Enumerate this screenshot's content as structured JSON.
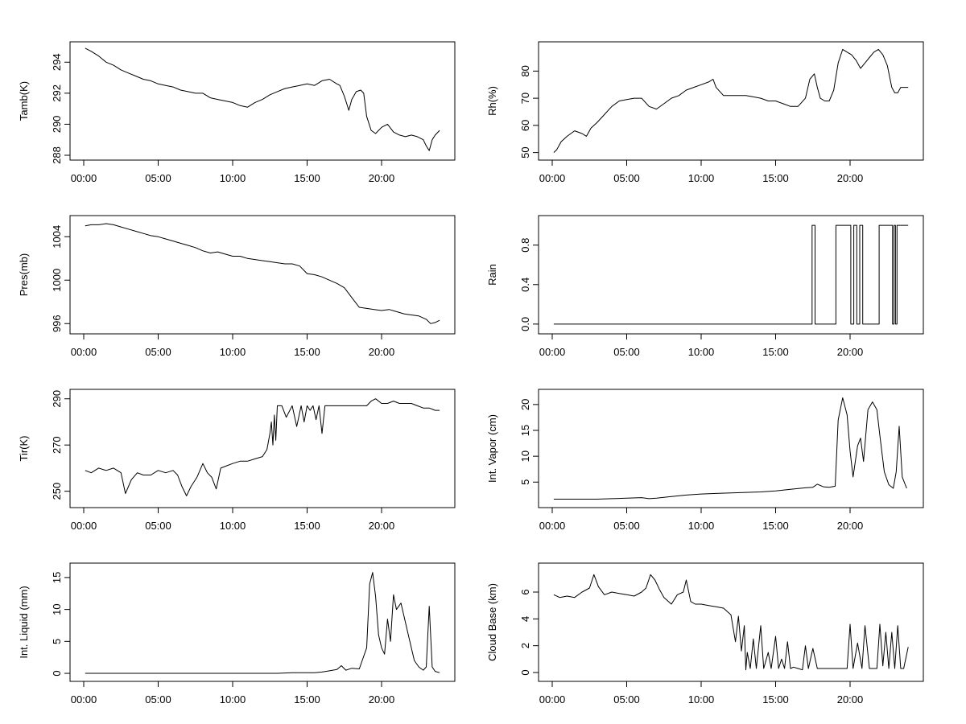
{
  "chart_data": [
    {
      "type": "line",
      "ylabel": "Tamb(K)",
      "xlim": [
        0,
        24
      ],
      "ylim": [
        288,
        295
      ],
      "xticks": [
        0,
        5,
        10,
        15,
        20
      ],
      "xtick_labels": [
        "00:00",
        "05:00",
        "10:00",
        "15:00",
        "20:00"
      ],
      "yticks": [
        288,
        290,
        292,
        294
      ],
      "ytick_labels": [
        "288",
        "290",
        "292",
        "294"
      ],
      "grid": false,
      "x": [
        0.1,
        0.5,
        1,
        1.5,
        2,
        2.5,
        3,
        3.5,
        4,
        4.5,
        5,
        5.5,
        6,
        6.5,
        7,
        7.5,
        8,
        8.5,
        9,
        9.5,
        10,
        10.5,
        11,
        11.5,
        12,
        12.5,
        13,
        13.5,
        14,
        14.5,
        15,
        15.5,
        16,
        16.5,
        17,
        17.2,
        17.5,
        17.8,
        18,
        18.3,
        18.6,
        18.8,
        19,
        19.3,
        19.6,
        20,
        20.4,
        20.8,
        21.2,
        21.6,
        22,
        22.4,
        22.8,
        23,
        23.2,
        23.4,
        23.6,
        23.9
      ],
      "y": [
        294.9,
        294.7,
        294.4,
        294.0,
        293.8,
        293.5,
        293.3,
        293.1,
        292.9,
        292.8,
        292.6,
        292.5,
        292.4,
        292.2,
        292.1,
        292.0,
        292.0,
        291.7,
        291.6,
        291.5,
        291.4,
        291.2,
        291.1,
        291.4,
        291.6,
        291.9,
        292.1,
        292.3,
        292.4,
        292.5,
        292.6,
        292.5,
        292.8,
        292.9,
        292.6,
        292.5,
        291.8,
        290.9,
        291.6,
        292.1,
        292.2,
        292.0,
        290.5,
        289.6,
        289.4,
        289.8,
        290.0,
        289.5,
        289.3,
        289.2,
        289.3,
        289.2,
        289.0,
        288.6,
        288.3,
        289.0,
        289.3,
        289.6
      ]
    },
    {
      "type": "line",
      "ylabel": "Rh(%)",
      "xlim": [
        0,
        24
      ],
      "ylim": [
        49,
        89
      ],
      "xticks": [
        0,
        5,
        10,
        15,
        20
      ],
      "xtick_labels": [
        "00:00",
        "05:00",
        "10:00",
        "15:00",
        "20:00"
      ],
      "yticks": [
        50,
        60,
        70,
        80
      ],
      "ytick_labels": [
        "50",
        "60",
        "70",
        "80"
      ],
      "grid": false,
      "x": [
        0.1,
        0.3,
        0.6,
        1,
        1.5,
        2,
        2.3,
        2.6,
        3,
        3.5,
        4,
        4.5,
        5,
        5.5,
        6,
        6.5,
        7,
        7.5,
        8,
        8.5,
        9,
        9.5,
        10,
        10.5,
        10.8,
        11,
        11.5,
        12,
        12.5,
        13,
        13.5,
        14,
        14.5,
        15,
        15.5,
        16,
        16.5,
        17,
        17.3,
        17.6,
        17.8,
        18,
        18.3,
        18.6,
        18.9,
        19.2,
        19.5,
        19.8,
        20.1,
        20.4,
        20.7,
        21,
        21.3,
        21.6,
        21.9,
        22.2,
        22.5,
        22.8,
        23,
        23.2,
        23.4,
        23.6,
        23.9
      ],
      "y": [
        50,
        51,
        54,
        56,
        58,
        57,
        56,
        59,
        61,
        64,
        67,
        69,
        69.5,
        70,
        70,
        67,
        66,
        68,
        70,
        71,
        73,
        74,
        75,
        76,
        77,
        74,
        71,
        71,
        71,
        71,
        70.5,
        70,
        69,
        69,
        68,
        67,
        67,
        70,
        77,
        79,
        74,
        70,
        69,
        69,
        73,
        83,
        88,
        87,
        86,
        84,
        81,
        83,
        85,
        87,
        88,
        86,
        82,
        74,
        72,
        72,
        74,
        74,
        74
      ]
    },
    {
      "type": "line",
      "ylabel": "Pres(mb)",
      "xlim": [
        0,
        24
      ],
      "ylim": [
        995.5,
        1005.5
      ],
      "xticks": [
        0,
        5,
        10,
        15,
        20
      ],
      "xtick_labels": [
        "00:00",
        "05:00",
        "10:00",
        "15:00",
        "20:00"
      ],
      "yticks": [
        996,
        1000,
        1004
      ],
      "ytick_labels": [
        "996",
        "1000",
        "1004"
      ],
      "grid": false,
      "x": [
        0.1,
        0.5,
        1,
        1.5,
        2,
        2.5,
        3,
        3.5,
        4,
        4.5,
        5,
        5.5,
        6,
        6.5,
        7,
        7.5,
        8,
        8.5,
        9,
        9.5,
        10,
        10.5,
        11,
        11.5,
        12,
        12.5,
        13,
        13.5,
        14,
        14.5,
        15,
        15.5,
        16,
        16.5,
        17,
        17.5,
        18,
        18.5,
        19,
        19.5,
        20,
        20.5,
        21,
        21.5,
        22,
        22.5,
        23,
        23.3,
        23.6,
        23.9
      ],
      "y": [
        1005.0,
        1005.1,
        1005.1,
        1005.2,
        1005.1,
        1004.9,
        1004.7,
        1004.5,
        1004.3,
        1004.1,
        1004.0,
        1003.8,
        1003.6,
        1003.4,
        1003.2,
        1003.0,
        1002.7,
        1002.5,
        1002.6,
        1002.4,
        1002.2,
        1002.2,
        1002.0,
        1001.9,
        1001.8,
        1001.7,
        1001.6,
        1001.5,
        1001.5,
        1001.3,
        1000.6,
        1000.5,
        1000.3,
        1000.0,
        999.7,
        999.3,
        998.4,
        997.5,
        997.4,
        997.3,
        997.2,
        997.3,
        997.1,
        996.9,
        996.8,
        996.7,
        996.4,
        996.0,
        996.1,
        996.3
      ]
    },
    {
      "type": "line",
      "ylabel": "Rain",
      "xlim": [
        0,
        24
      ],
      "ylim": [
        -0.05,
        1.05
      ],
      "xticks": [
        0,
        5,
        10,
        15,
        20
      ],
      "xtick_labels": [
        "00:00",
        "05:00",
        "10:00",
        "15:00",
        "20:00"
      ],
      "yticks": [
        0.0,
        0.4,
        0.8
      ],
      "ytick_labels": [
        "0.0",
        "0.4",
        "0.8"
      ],
      "grid": false,
      "x": [
        0.1,
        17.45,
        17.45,
        17.65,
        17.65,
        19.05,
        19.05,
        20.05,
        20.05,
        20.25,
        20.25,
        20.45,
        20.45,
        20.65,
        20.65,
        20.85,
        20.85,
        21.95,
        21.95,
        22.85,
        22.85,
        22.95,
        22.95,
        23.05,
        23.05,
        23.15,
        23.15,
        23.9
      ],
      "y": [
        0,
        0,
        1,
        1,
        0,
        0,
        1,
        1,
        0,
        0,
        1,
        1,
        0,
        0,
        1,
        1,
        0,
        0,
        1,
        1,
        0,
        0,
        1,
        1,
        0,
        0,
        1,
        1
      ]
    },
    {
      "type": "line",
      "ylabel": "Tir(K)",
      "xlim": [
        0,
        24
      ],
      "ylim": [
        245,
        292
      ],
      "xticks": [
        0,
        5,
        10,
        15,
        20
      ],
      "xtick_labels": [
        "00:00",
        "05:00",
        "10:00",
        "15:00",
        "20:00"
      ],
      "yticks": [
        250,
        270,
        290
      ],
      "ytick_labels": [
        "250",
        "270",
        "290"
      ],
      "grid": false,
      "x": [
        0.1,
        0.5,
        1,
        1.5,
        2,
        2.5,
        2.8,
        3.2,
        3.6,
        4,
        4.5,
        5,
        5.5,
        6,
        6.3,
        6.6,
        6.9,
        7.2,
        7.6,
        8,
        8.3,
        8.6,
        8.9,
        9.2,
        9.6,
        10,
        10.5,
        11,
        11.5,
        12,
        12.3,
        12.5,
        12.6,
        12.7,
        12.8,
        12.9,
        13,
        13.1,
        13.3,
        13.6,
        14,
        14.3,
        14.6,
        14.8,
        15,
        15.2,
        15.4,
        15.6,
        15.8,
        16,
        16.2,
        16.5,
        17,
        17.5,
        18,
        18.5,
        19,
        19.3,
        19.6,
        20,
        20.4,
        20.8,
        21.2,
        21.6,
        22,
        22.4,
        22.8,
        23.2,
        23.6,
        23.9
      ],
      "y": [
        259,
        258,
        260,
        259,
        260,
        258,
        249,
        255,
        258,
        257,
        257,
        259,
        258,
        259,
        257,
        252,
        248,
        252,
        256,
        262,
        258,
        256,
        251,
        260,
        261,
        262,
        263,
        263,
        264,
        265,
        268,
        275,
        280,
        270,
        283,
        272,
        287,
        287,
        287,
        282,
        287,
        278,
        287,
        280,
        287,
        285,
        287,
        281,
        287,
        275,
        287,
        287,
        287,
        287,
        287,
        287,
        287,
        289,
        290,
        288,
        288,
        289,
        288,
        288,
        288,
        287,
        286,
        286,
        285,
        285
      ]
    },
    {
      "type": "line",
      "ylabel": "Int. Vapor (cm)",
      "xlim": [
        0,
        24
      ],
      "ylim": [
        1,
        22
      ],
      "xticks": [
        0,
        5,
        10,
        15,
        20
      ],
      "xtick_labels": [
        "00:00",
        "05:00",
        "10:00",
        "15:00",
        "20:00"
      ],
      "yticks": [
        5,
        10,
        15,
        20
      ],
      "ytick_labels": [
        "5",
        "10",
        "15",
        "20"
      ],
      "grid": false,
      "x": [
        0.1,
        1,
        2,
        3,
        4,
        5,
        6,
        6.5,
        7,
        8,
        9,
        10,
        11,
        12,
        13,
        14,
        15,
        16,
        17,
        17.5,
        17.8,
        18.2,
        18.6,
        19,
        19.2,
        19.5,
        19.8,
        20,
        20.2,
        20.5,
        20.7,
        20.9,
        21.2,
        21.5,
        21.8,
        22,
        22.3,
        22.6,
        22.9,
        23.1,
        23.3,
        23.5,
        23.8
      ],
      "y": [
        1.7,
        1.7,
        1.7,
        1.7,
        1.8,
        1.9,
        2.0,
        1.8,
        1.9,
        2.2,
        2.5,
        2.7,
        2.8,
        2.9,
        3.0,
        3.1,
        3.3,
        3.6,
        3.9,
        4.0,
        4.6,
        4.1,
        4.0,
        4.2,
        17,
        21.3,
        18,
        11,
        6,
        12,
        13.5,
        9,
        19,
        20.5,
        19,
        14,
        7,
        4.5,
        3.8,
        7,
        15.8,
        6,
        3.8
      ]
    },
    {
      "type": "line",
      "ylabel": "Int. Liquid (mm)",
      "xlim": [
        0,
        24
      ],
      "ylim": [
        -0.5,
        16.5
      ],
      "xticks": [
        0,
        5,
        10,
        15,
        20
      ],
      "xtick_labels": [
        "00:00",
        "05:00",
        "10:00",
        "15:00",
        "20:00"
      ],
      "yticks": [
        0,
        5,
        10,
        15
      ],
      "ytick_labels": [
        "0",
        "5",
        "10",
        "15"
      ],
      "grid": false,
      "x": [
        0.1,
        5,
        10,
        13,
        14,
        15,
        15.5,
        16,
        16.5,
        17,
        17.3,
        17.6,
        18,
        18.5,
        19,
        19.2,
        19.4,
        19.6,
        19.8,
        20,
        20.2,
        20.4,
        20.6,
        20.8,
        21,
        21.3,
        21.6,
        21.9,
        22.2,
        22.5,
        22.8,
        23,
        23.2,
        23.4,
        23.6,
        23.9
      ],
      "y": [
        0,
        0,
        0,
        0,
        0.1,
        0.1,
        0.1,
        0.2,
        0.4,
        0.6,
        1.2,
        0.5,
        0.8,
        0.7,
        4,
        14,
        15.8,
        12,
        6,
        4,
        3,
        8.5,
        5,
        12.3,
        10,
        11,
        8,
        5,
        2,
        1,
        0.5,
        1,
        10.5,
        1,
        0.3,
        0.1
      ]
    },
    {
      "type": "line",
      "ylabel": "Cloud Base (km)",
      "xlim": [
        0,
        24
      ],
      "ylim": [
        -0.3,
        7.8
      ],
      "xticks": [
        0,
        5,
        10,
        15,
        20
      ],
      "xtick_labels": [
        "00:00",
        "05:00",
        "10:00",
        "15:00",
        "20:00"
      ],
      "yticks": [
        0,
        2,
        4,
        6
      ],
      "ytick_labels": [
        "0",
        "2",
        "4",
        "6"
      ],
      "grid": false,
      "x": [
        0.1,
        0.5,
        1,
        1.5,
        2,
        2.5,
        2.8,
        3.1,
        3.5,
        4,
        4.5,
        5,
        5.5,
        6,
        6.3,
        6.6,
        6.9,
        7.2,
        7.5,
        8,
        8.4,
        8.8,
        9,
        9.3,
        9.6,
        10,
        10.5,
        11,
        11.5,
        12,
        12.3,
        12.5,
        12.7,
        12.9,
        13,
        13.1,
        13.3,
        13.5,
        13.7,
        14,
        14.2,
        14.5,
        14.7,
        15,
        15.2,
        15.4,
        15.6,
        15.8,
        16,
        16.2,
        16.5,
        16.8,
        17,
        17.2,
        17.5,
        17.8,
        18,
        18.5,
        19,
        19.5,
        19.8,
        20,
        20.2,
        20.5,
        20.8,
        21,
        21.3,
        21.6,
        21.8,
        22,
        22.2,
        22.4,
        22.6,
        22.8,
        23,
        23.2,
        23.4,
        23.6,
        23.9
      ],
      "y": [
        5.8,
        5.6,
        5.7,
        5.6,
        6.0,
        6.3,
        7.3,
        6.4,
        5.8,
        6.0,
        5.9,
        5.8,
        5.7,
        6.0,
        6.3,
        7.3,
        6.9,
        6.2,
        5.6,
        5.1,
        5.8,
        6.0,
        6.9,
        5.3,
        5.1,
        5.1,
        5.0,
        4.9,
        4.8,
        4.3,
        2.3,
        4.2,
        1.6,
        3.5,
        0.2,
        1.5,
        0.3,
        2.5,
        0.3,
        3.5,
        0.3,
        1.5,
        0.3,
        2.7,
        0.3,
        1.0,
        0.3,
        2.3,
        0.3,
        0.4,
        0.3,
        0.2,
        2.0,
        0.3,
        1.8,
        0.3,
        0.3,
        0.3,
        0.3,
        0.3,
        0.3,
        3.6,
        0.3,
        2.2,
        0.3,
        3.5,
        0.3,
        0.3,
        0.3,
        3.6,
        0.5,
        3.0,
        0.3,
        3.0,
        0.3,
        3.5,
        0.3,
        0.3,
        1.9
      ]
    }
  ]
}
